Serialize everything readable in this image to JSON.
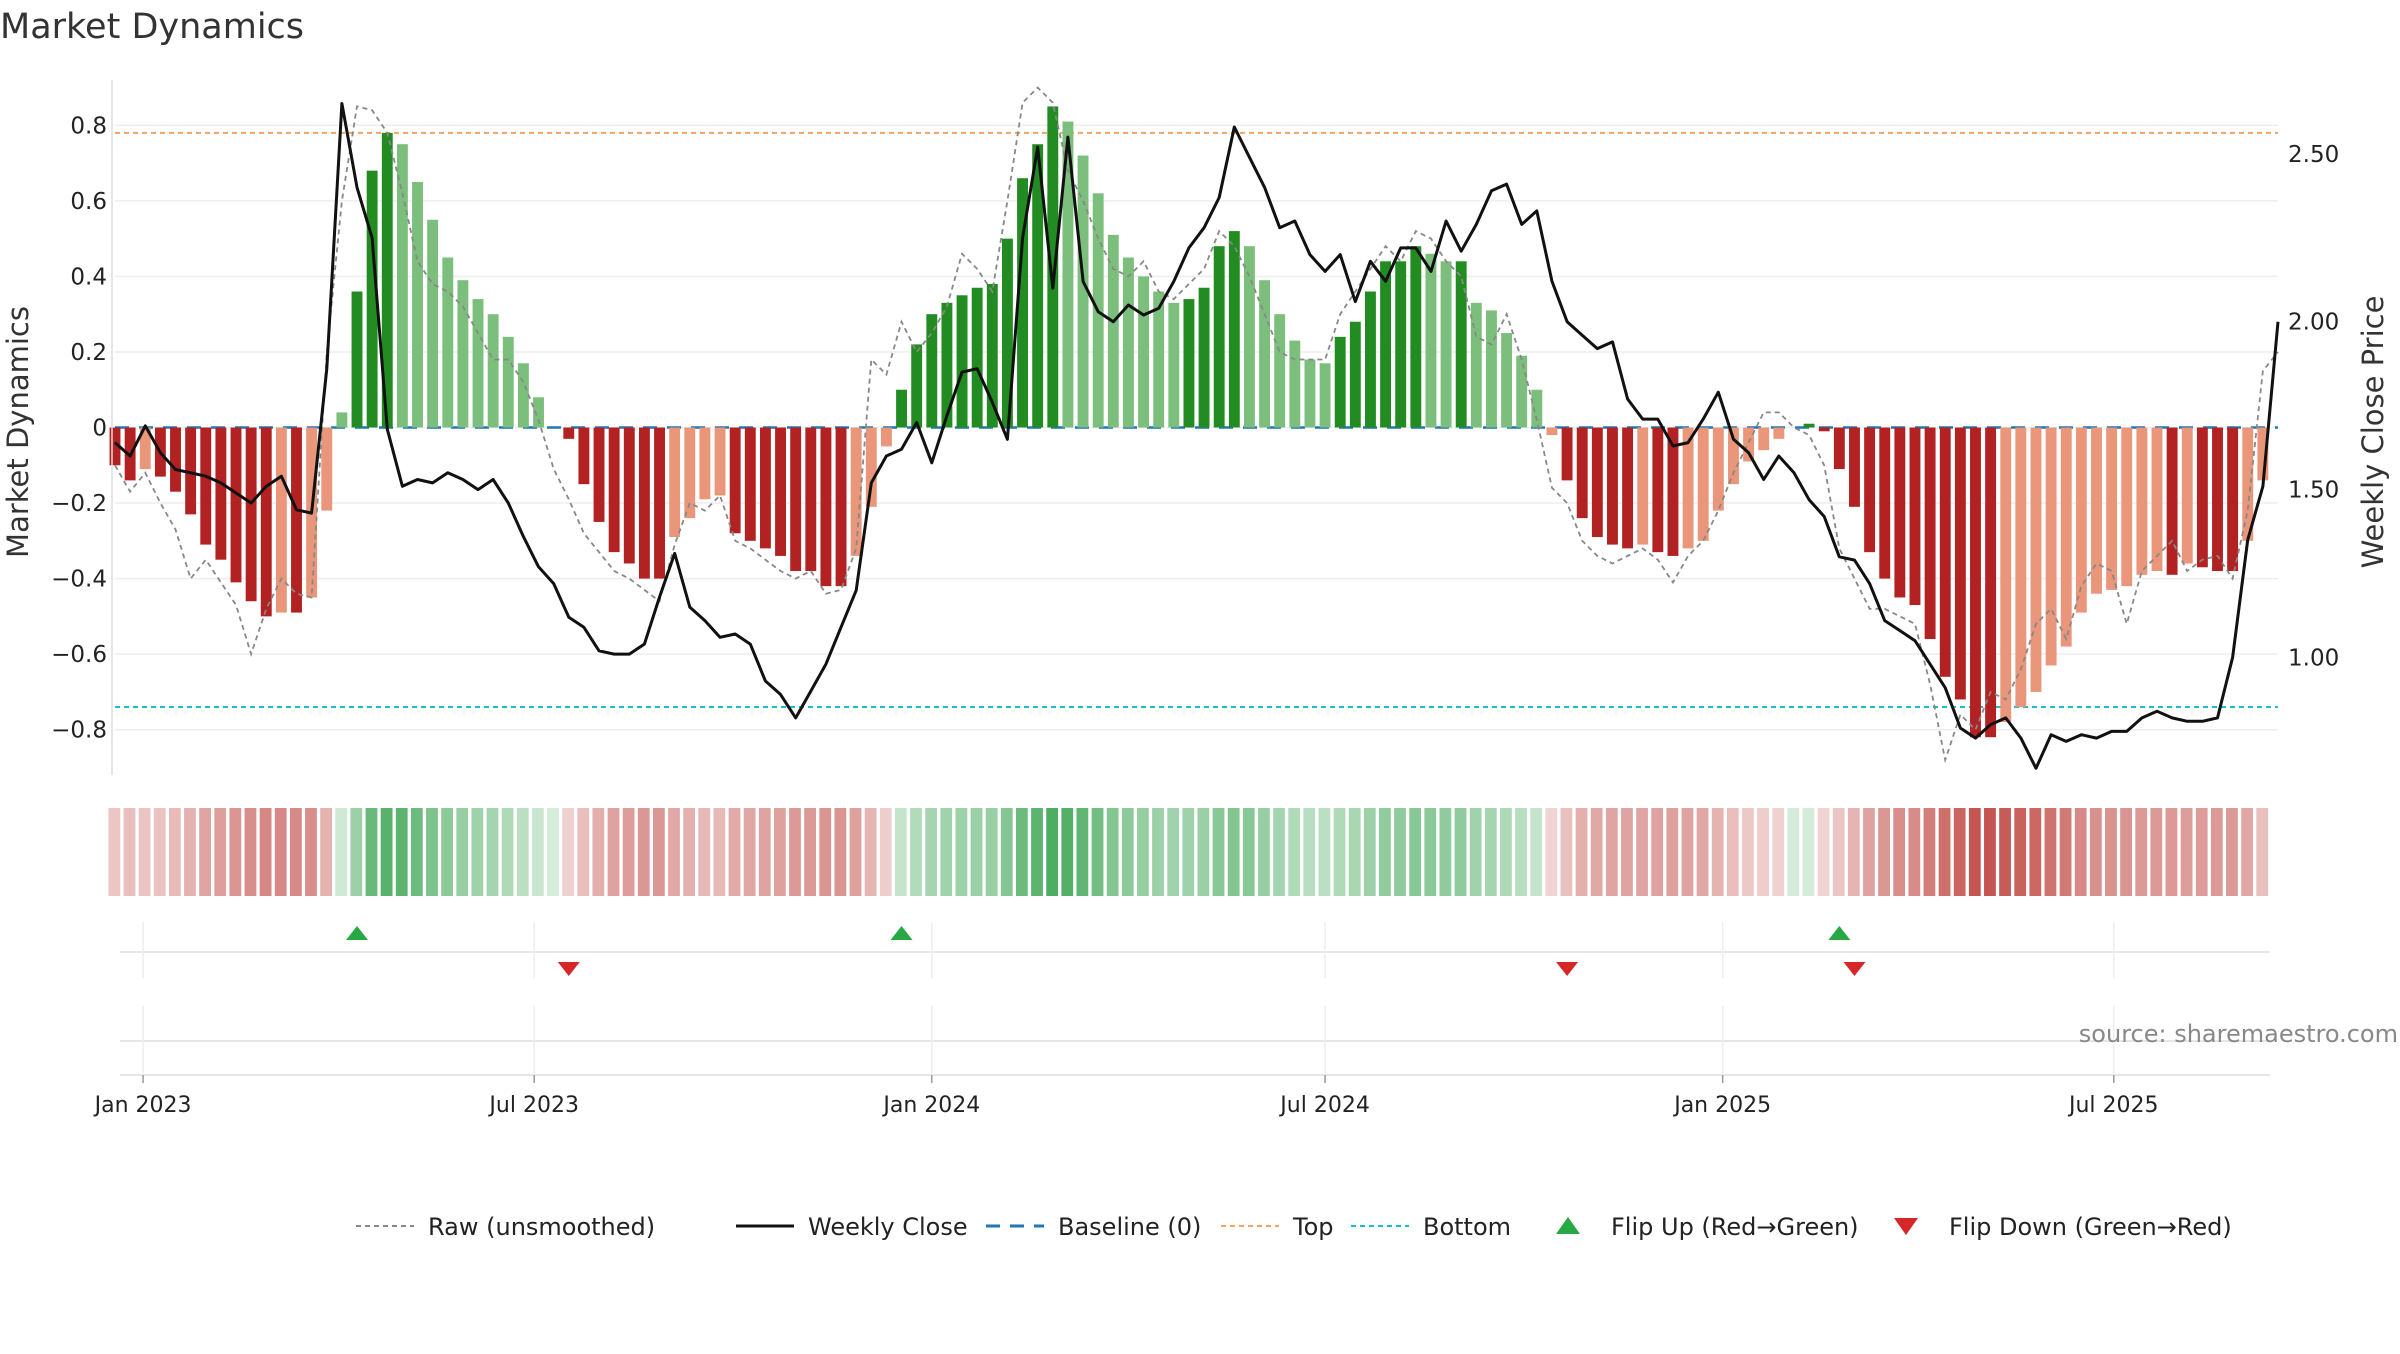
{
  "chart_data": {
    "type": "bar",
    "title": "Market Dynamics",
    "ylabel_left": "Market Dynamics",
    "ylabel_right": "Weekly Close Price",
    "source": "source: sharemaestro.com",
    "x_start": "2022-12-19",
    "x_end": "2025-09-15",
    "y_left_lim": [
      -0.92,
      0.92
    ],
    "y_right_lim": [
      0.65,
      2.72
    ],
    "y_left_ticks": [
      0.8,
      0.6,
      0.4,
      0.2,
      0,
      -0.2,
      -0.4,
      -0.6,
      -0.8
    ],
    "y_left_tick_labels": [
      "0.8",
      "0.6",
      "0.4",
      "0.2",
      "0",
      "−0.2",
      "−0.4",
      "−0.6",
      "−0.8"
    ],
    "y_right_ticks": [
      2.5,
      2.0,
      1.5,
      1.0
    ],
    "y_right_tick_labels": [
      "2.50",
      "2.00",
      "1.50",
      "1.00"
    ],
    "x_ticks": [
      "2023-01-01",
      "2023-07-01",
      "2024-01-01",
      "2024-07-01",
      "2025-01-01",
      "2025-07-01"
    ],
    "x_tick_labels": [
      "Jan 2023",
      "Jul 2023",
      "Jan 2024",
      "Jul 2024",
      "Jan 2025",
      "Jul 2025"
    ],
    "grid": true,
    "legend_position": "bottom",
    "first_week": "2022-12-19",
    "week_count": 144,
    "histogram": [
      -0.1,
      -0.14,
      -0.11,
      -0.13,
      -0.17,
      -0.23,
      -0.31,
      -0.35,
      -0.41,
      -0.46,
      -0.5,
      -0.49,
      -0.49,
      -0.45,
      -0.22,
      0.04,
      0.36,
      0.68,
      0.78,
      0.75,
      0.65,
      0.55,
      0.45,
      0.39,
      0.34,
      0.3,
      0.24,
      0.17,
      0.08,
      0.0,
      -0.03,
      -0.15,
      -0.25,
      -0.33,
      -0.36,
      -0.4,
      -0.4,
      -0.29,
      -0.24,
      -0.19,
      -0.18,
      -0.28,
      -0.3,
      -0.32,
      -0.34,
      -0.38,
      -0.38,
      -0.42,
      -0.42,
      -0.34,
      -0.21,
      -0.05,
      0.1,
      0.22,
      0.3,
      0.33,
      0.35,
      0.37,
      0.38,
      0.5,
      0.66,
      0.75,
      0.85,
      0.81,
      0.72,
      0.62,
      0.51,
      0.45,
      0.4,
      0.36,
      0.33,
      0.34,
      0.37,
      0.48,
      0.52,
      0.48,
      0.39,
      0.3,
      0.23,
      0.18,
      0.17,
      0.24,
      0.28,
      0.36,
      0.44,
      0.44,
      0.48,
      0.46,
      0.44,
      0.44,
      0.33,
      0.31,
      0.25,
      0.19,
      0.1,
      -0.02,
      -0.14,
      -0.24,
      -0.29,
      -0.31,
      -0.32,
      -0.31,
      -0.33,
      -0.34,
      -0.32,
      -0.3,
      -0.22,
      -0.15,
      -0.09,
      -0.06,
      -0.03,
      0.0,
      0.01,
      -0.01,
      -0.11,
      -0.21,
      -0.33,
      -0.4,
      -0.45,
      -0.47,
      -0.56,
      -0.66,
      -0.72,
      -0.82,
      -0.82,
      -0.78,
      -0.74,
      -0.7,
      -0.63,
      -0.58,
      -0.49,
      -0.44,
      -0.43,
      -0.42,
      -0.39,
      -0.38,
      -0.39,
      -0.36,
      -0.37,
      -0.38,
      -0.38,
      -0.3,
      -0.14
    ],
    "raw": [
      -0.1,
      -0.17,
      -0.12,
      -0.2,
      -0.27,
      -0.4,
      -0.35,
      -0.41,
      -0.47,
      -0.6,
      -0.48,
      -0.4,
      -0.44,
      -0.45,
      0.2,
      0.6,
      0.85,
      0.84,
      0.78,
      0.62,
      0.44,
      0.38,
      0.36,
      0.32,
      0.25,
      0.18,
      0.18,
      0.12,
      0.02,
      -0.11,
      -0.19,
      -0.28,
      -0.33,
      -0.38,
      -0.4,
      -0.43,
      -0.46,
      -0.31,
      -0.2,
      -0.22,
      -0.18,
      -0.3,
      -0.32,
      -0.35,
      -0.38,
      -0.4,
      -0.38,
      -0.44,
      -0.43,
      -0.32,
      0.18,
      0.14,
      0.28,
      0.2,
      0.25,
      0.32,
      0.46,
      0.42,
      0.36,
      0.6,
      0.86,
      0.9,
      0.86,
      0.68,
      0.6,
      0.5,
      0.42,
      0.4,
      0.44,
      0.36,
      0.34,
      0.38,
      0.42,
      0.52,
      0.48,
      0.4,
      0.3,
      0.2,
      0.18,
      0.18,
      0.18,
      0.3,
      0.36,
      0.42,
      0.48,
      0.44,
      0.52,
      0.5,
      0.44,
      0.4,
      0.24,
      0.22,
      0.3,
      0.18,
      0.02,
      -0.16,
      -0.2,
      -0.3,
      -0.34,
      -0.36,
      -0.34,
      -0.32,
      -0.35,
      -0.41,
      -0.34,
      -0.3,
      -0.22,
      -0.12,
      -0.04,
      0.04,
      0.04,
      0.0,
      -0.02,
      -0.1,
      -0.32,
      -0.4,
      -0.48,
      -0.48,
      -0.5,
      -0.52,
      -0.68,
      -0.88,
      -0.76,
      -0.8,
      -0.7,
      -0.72,
      -0.64,
      -0.52,
      -0.48,
      -0.56,
      -0.42,
      -0.36,
      -0.38,
      -0.52,
      -0.38,
      -0.34,
      -0.3,
      -0.38,
      -0.35,
      -0.34,
      -0.4,
      -0.22,
      0.15,
      0.2
    ],
    "price": [
      1.64,
      1.6,
      1.69,
      1.61,
      1.56,
      1.55,
      1.54,
      1.52,
      1.49,
      1.46,
      1.51,
      1.54,
      1.44,
      1.43,
      1.86,
      2.65,
      2.4,
      2.25,
      1.68,
      1.51,
      1.53,
      1.52,
      1.55,
      1.53,
      1.5,
      1.53,
      1.46,
      1.36,
      1.27,
      1.22,
      1.12,
      1.09,
      1.02,
      1.01,
      1.01,
      1.04,
      1.18,
      1.31,
      1.15,
      1.11,
      1.06,
      1.07,
      1.04,
      0.93,
      0.89,
      0.82,
      0.9,
      0.98,
      1.09,
      1.2,
      1.52,
      1.6,
      1.62,
      1.7,
      1.58,
      1.72,
      1.85,
      1.86,
      1.76,
      1.65,
      2.25,
      2.52,
      2.1,
      2.55,
      2.12,
      2.03,
      2.0,
      2.05,
      2.02,
      2.04,
      2.12,
      2.22,
      2.28,
      2.37,
      2.58,
      2.49,
      2.4,
      2.28,
      2.3,
      2.2,
      2.15,
      2.2,
      2.06,
      2.18,
      2.12,
      2.22,
      2.22,
      2.15,
      2.3,
      2.21,
      2.29,
      2.39,
      2.41,
      2.29,
      2.33,
      2.12,
      2.0,
      1.96,
      1.92,
      1.94,
      1.77,
      1.71,
      1.71,
      1.63,
      1.64,
      1.71,
      1.79,
      1.65,
      1.61,
      1.53,
      1.6,
      1.55,
      1.47,
      1.42,
      1.3,
      1.29,
      1.22,
      1.11,
      1.08,
      1.05,
      0.98,
      0.91,
      0.79,
      0.76,
      0.8,
      0.82,
      0.76,
      0.67,
      0.77,
      0.75,
      0.77,
      0.76,
      0.78,
      0.78,
      0.82,
      0.84,
      0.82,
      0.81,
      0.81,
      0.82,
      1.0,
      1.35,
      1.51,
      2.0
    ],
    "level_top": 0.78,
    "level_bottom": -0.74,
    "baseline": 0,
    "flip_up": [
      "2023-04-10",
      "2023-12-18",
      "2025-02-24"
    ],
    "flip_down": [
      "2023-07-17",
      "2024-10-21",
      "2025-03-03"
    ],
    "colors": {
      "green_strong": "#228b22",
      "green_weak": "#7cbf7c",
      "red_strong": "#b22222",
      "red_weak": "#e9967a",
      "price": "#111111",
      "raw": "#888888",
      "baseline": "#1f77b4",
      "top": "#f4a460",
      "bottom": "#17becf",
      "flip_up": "#28a745",
      "flip_down": "#d62728",
      "grid": "#eeeeee"
    },
    "legend": [
      {
        "key": "raw",
        "label": "Raw (unsmoothed)"
      },
      {
        "key": "price",
        "label": "Weekly Close"
      },
      {
        "key": "baseline",
        "label": "Baseline (0)"
      },
      {
        "key": "top",
        "label": "Top"
      },
      {
        "key": "bottom",
        "label": "Bottom"
      },
      {
        "key": "flip_up",
        "label": "Flip Up (Red→Green)"
      },
      {
        "key": "flip_down",
        "label": "Flip Down (Green→Red)"
      }
    ]
  }
}
